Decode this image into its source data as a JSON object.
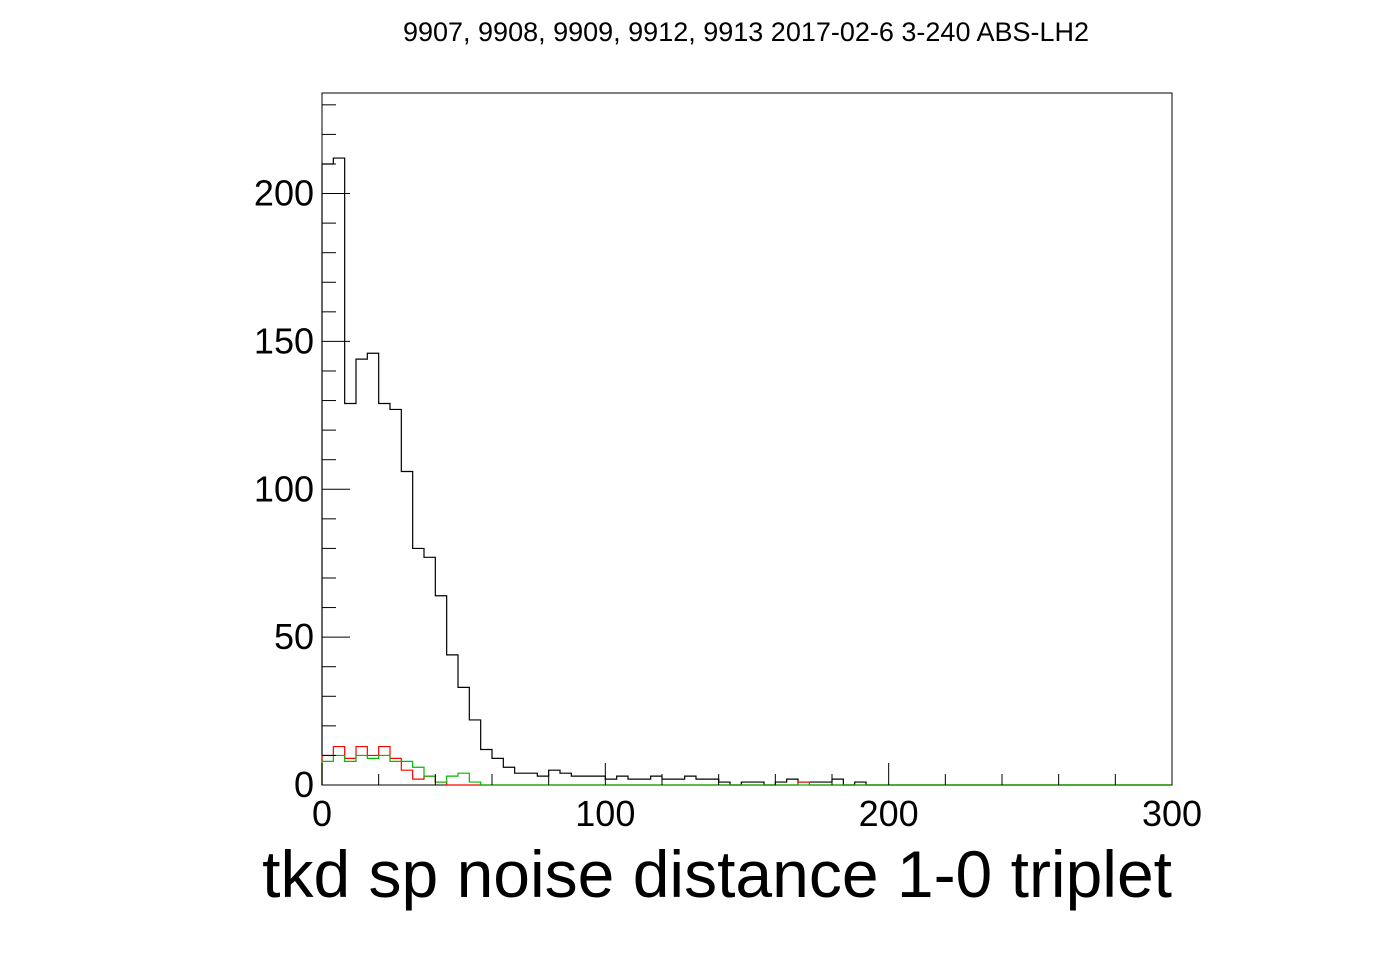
{
  "chart_data": {
    "type": "histogram",
    "title": "9907, 9908, 9909, 9912, 9913 2017-02-6 3-240 ABS-LH2",
    "xlabel": "tkd sp noise distance 1-0 triplet",
    "ylabel": "",
    "xlim": [
      0,
      300
    ],
    "ylim": [
      0,
      234
    ],
    "bin_width": 4,
    "x_ticks": [
      0,
      100,
      200,
      300
    ],
    "y_ticks": [
      0,
      50,
      100,
      150,
      200
    ],
    "grid": false,
    "legend": "none",
    "series": [
      {
        "color": "#000000",
        "values": [
          210,
          212,
          129,
          144,
          146,
          129,
          127,
          106,
          80,
          77,
          64,
          44,
          33,
          22,
          12,
          9,
          6,
          4,
          4,
          3,
          5,
          4,
          3,
          3,
          3,
          2,
          3,
          2,
          2,
          3,
          2,
          2,
          3,
          2,
          2,
          1,
          0,
          1,
          1,
          0,
          1,
          2,
          1,
          1,
          1,
          2,
          0,
          1,
          0,
          0,
          0,
          0,
          0,
          0,
          0,
          0,
          0,
          0,
          0,
          0,
          0,
          0,
          0,
          0,
          0,
          0,
          0,
          0,
          0,
          0,
          0,
          0,
          0,
          0,
          0
        ]
      },
      {
        "color": "#ff0000",
        "values": [
          10,
          13,
          9,
          13,
          10,
          13,
          9,
          5,
          2,
          3,
          1,
          0,
          0,
          0,
          0,
          0,
          0,
          0,
          0,
          0,
          0,
          0,
          0,
          0,
          0,
          0,
          0,
          0,
          0,
          0,
          0,
          0,
          0,
          0,
          0,
          0,
          0,
          0,
          0,
          0,
          0,
          0,
          1,
          0,
          0,
          0,
          0,
          0,
          0,
          0,
          0,
          0,
          0,
          0,
          0,
          0,
          0,
          0,
          0,
          0,
          0,
          0,
          0,
          0,
          0,
          0,
          0,
          0,
          0,
          0,
          0,
          0,
          0,
          0,
          0
        ]
      },
      {
        "color": "#00bb00",
        "values": [
          8,
          10,
          8,
          10,
          9,
          10,
          8,
          8,
          6,
          3,
          1,
          3,
          4,
          1,
          0,
          0,
          0,
          0,
          0,
          0,
          0,
          0,
          0,
          0,
          0,
          0,
          0,
          0,
          0,
          0,
          0,
          0,
          0,
          0,
          0,
          0,
          0,
          0,
          0,
          0,
          0,
          0,
          0,
          0,
          0,
          0,
          0,
          0,
          0,
          0,
          0,
          0,
          0,
          0,
          0,
          0,
          0,
          0,
          0,
          0,
          0,
          0,
          0,
          0,
          0,
          0,
          0,
          0,
          0,
          0,
          0,
          0,
          0,
          0,
          0
        ]
      }
    ]
  }
}
